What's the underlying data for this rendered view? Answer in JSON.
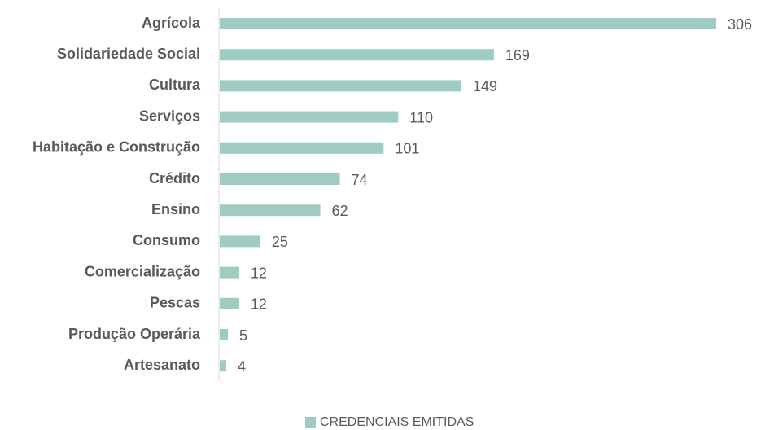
{
  "chart_data": {
    "type": "bar",
    "orientation": "horizontal",
    "categories": [
      "Agrícola",
      "Solidariedade Social",
      "Cultura",
      "Serviços",
      "Habitação e Construção",
      "Crédito",
      "Ensino",
      "Consumo",
      "Comercialização",
      "Pescas",
      "Produção Operária",
      "Artesanato"
    ],
    "series": [
      {
        "name": "CREDENCIAIS EMITIDAS",
        "color": "#9fcbc3",
        "values": [
          306,
          169,
          149,
          110,
          101,
          74,
          62,
          25,
          12,
          12,
          5,
          4
        ]
      }
    ],
    "xlim": [
      0,
      306
    ],
    "legend": "bottom"
  }
}
